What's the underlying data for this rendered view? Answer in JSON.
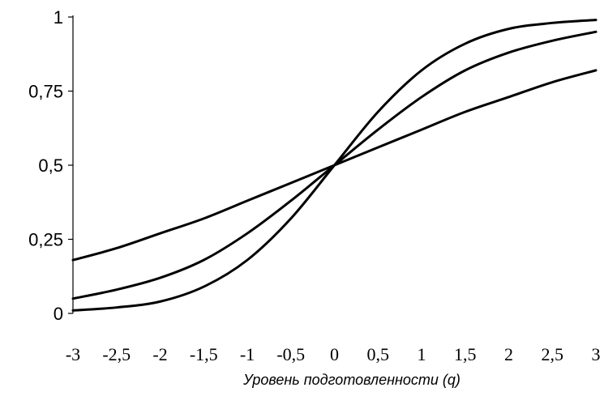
{
  "chart_data": {
    "type": "line",
    "xlabel": "Уровень подготовленности (q)",
    "ylabel": "",
    "title": "",
    "xlim": [
      -3,
      3
    ],
    "ylim": [
      0,
      1
    ],
    "x_ticks": [
      "-3",
      "-2,5",
      "-2",
      "-1,5",
      "-1",
      "-0,5",
      "0",
      "0,5",
      "1",
      "1,5",
      "2",
      "2,5",
      "3"
    ],
    "y_ticks": [
      "0",
      "0,25",
      "0,5",
      "0,75",
      "1"
    ],
    "grid": false,
    "legend": "none",
    "x": [
      -3,
      -2.5,
      -2,
      -1.5,
      -1,
      -0.5,
      0,
      0.5,
      1,
      1.5,
      2,
      2.5,
      3
    ],
    "series": [
      {
        "values": [
          0.18,
          0.22,
          0.27,
          0.32,
          0.38,
          0.44,
          0.5,
          0.56,
          0.62,
          0.68,
          0.73,
          0.78,
          0.82
        ],
        "color": "#000000"
      },
      {
        "values": [
          0.05,
          0.08,
          0.12,
          0.18,
          0.27,
          0.38,
          0.5,
          0.62,
          0.73,
          0.82,
          0.88,
          0.92,
          0.95
        ],
        "color": "#000000"
      },
      {
        "values": [
          0.01,
          0.02,
          0.04,
          0.09,
          0.18,
          0.32,
          0.5,
          0.68,
          0.82,
          0.91,
          0.96,
          0.98,
          0.99
        ],
        "color": "#000000"
      }
    ]
  }
}
